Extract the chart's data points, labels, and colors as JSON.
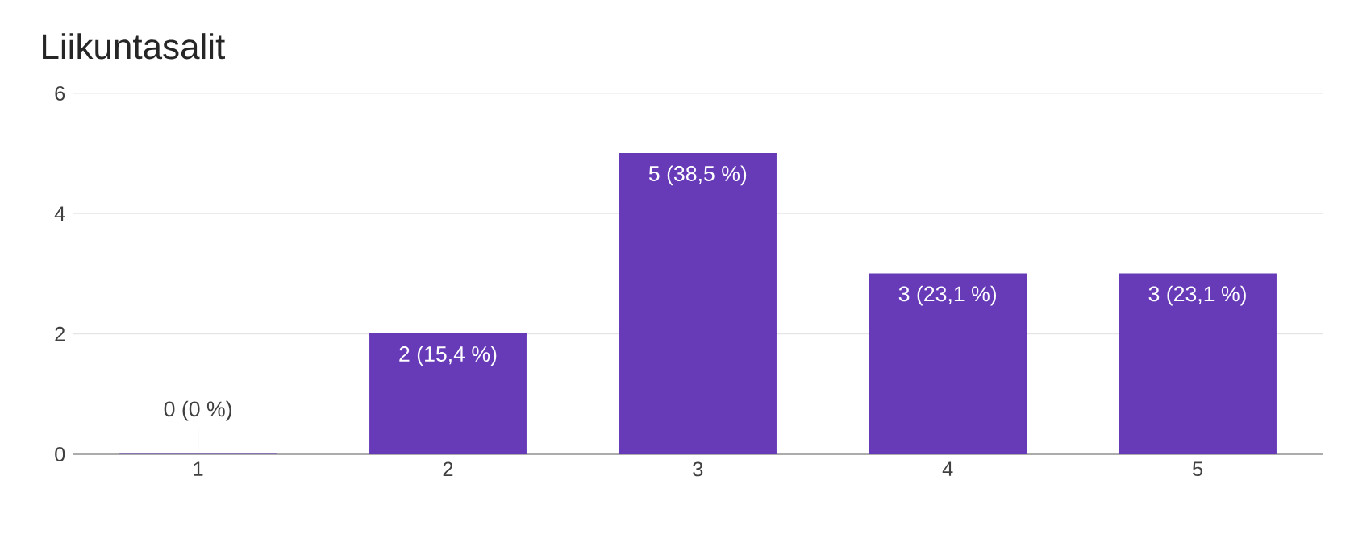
{
  "chart_data": {
    "type": "bar",
    "title": "Liikuntasalit",
    "categories": [
      "1",
      "2",
      "3",
      "4",
      "5"
    ],
    "values": [
      0,
      2,
      5,
      3,
      3
    ],
    "value_labels": [
      "0 (0 %)",
      "2 (15,4 %)",
      "5 (38,5 %)",
      "3 (23,1 %)",
      "3 (23,1 %)"
    ],
    "color": "#673ab7",
    "ylim": [
      0,
      6
    ],
    "yticks": [
      0,
      2,
      4,
      6
    ],
    "grid": "y"
  }
}
